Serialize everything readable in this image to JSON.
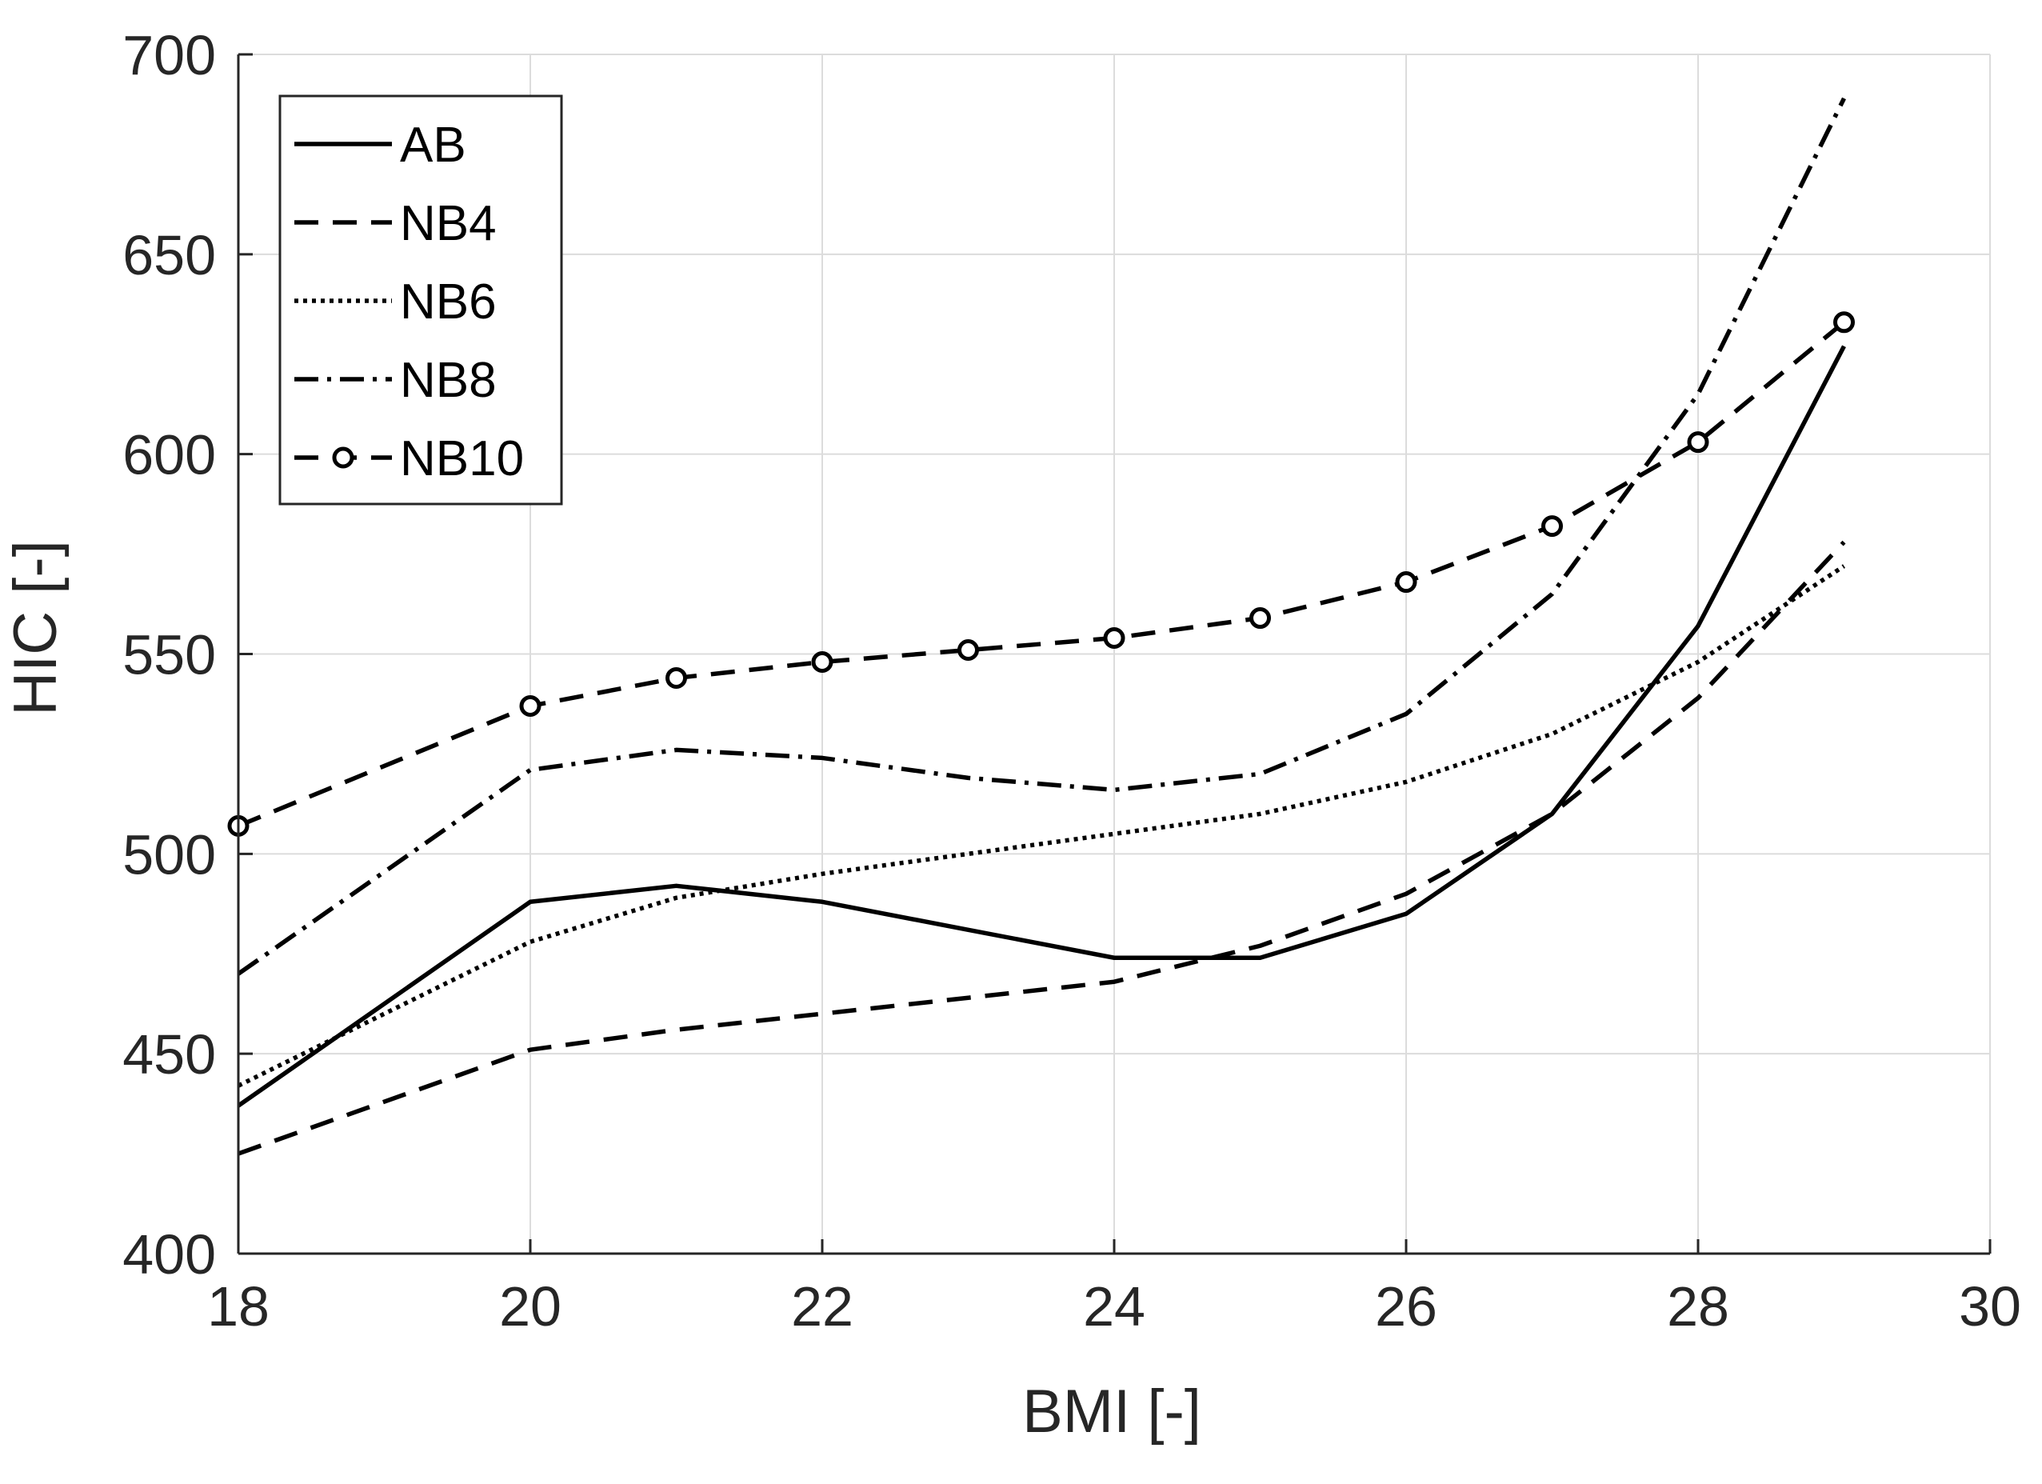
{
  "chart_data": {
    "type": "line",
    "title": "",
    "xlabel": "BMI [-]",
    "ylabel": "HIC [-]",
    "xlim": [
      18,
      30
    ],
    "ylim": [
      400,
      700
    ],
    "xticks": [
      18,
      20,
      22,
      24,
      26,
      28,
      30
    ],
    "yticks": [
      400,
      450,
      500,
      550,
      600,
      650,
      700
    ],
    "grid": true,
    "legend_position": "top-left",
    "x": [
      18,
      20,
      21,
      22,
      23,
      24,
      25,
      26,
      27,
      28,
      29
    ],
    "series": [
      {
        "name": "AB",
        "style": "solid",
        "marker": "none",
        "values": [
          437,
          488,
          492,
          488,
          481,
          474,
          474,
          485,
          510,
          557,
          627
        ]
      },
      {
        "name": "NB4",
        "style": "dashed",
        "marker": "none",
        "values": [
          425,
          451,
          456,
          460,
          464,
          468,
          477,
          490,
          510,
          539,
          578
        ]
      },
      {
        "name": "NB6",
        "style": "dotted",
        "marker": "none",
        "values": [
          442,
          478,
          489,
          495,
          500,
          505,
          510,
          518,
          530,
          548,
          572
        ]
      },
      {
        "name": "NB8",
        "style": "dash-dot",
        "marker": "none",
        "values": [
          470,
          521,
          526,
          524,
          519,
          516,
          520,
          535,
          565,
          615,
          689
        ]
      },
      {
        "name": "NB10",
        "style": "dashed",
        "marker": "circle",
        "values": [
          507,
          537,
          544,
          548,
          551,
          554,
          559,
          568,
          582,
          603,
          633
        ]
      }
    ],
    "colors": {
      "line": "#000000",
      "grid": "#dcdcdc",
      "axis": "#262626",
      "background": "#ffffff"
    }
  }
}
